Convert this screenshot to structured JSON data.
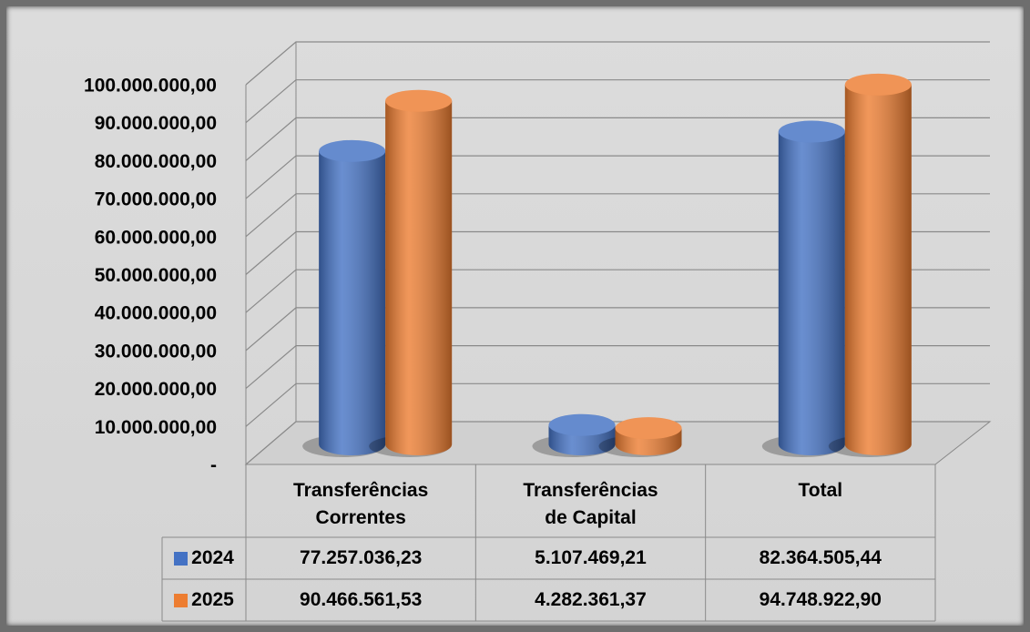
{
  "chart_data": {
    "type": "bar3d",
    "categories": [
      "Transferências Correntes",
      "Transferências de Capital",
      "Total"
    ],
    "series": [
      {
        "name": "2024",
        "color": "#4472c4",
        "values": [
          77257036.23,
          5107469.21,
          82364505.44
        ],
        "value_labels": [
          "77.257.036,23",
          "5.107.469,21",
          "82.364.505,44"
        ]
      },
      {
        "name": "2025",
        "color": "#ed7d31",
        "values": [
          90466561.53,
          4282361.37,
          94748922.9
        ],
        "value_labels": [
          "90.466.561,53",
          "4.282.361,37",
          "94.748.922,90"
        ]
      }
    ],
    "ylim": [
      0,
      100000000
    ],
    "yticks": [
      {
        "value": 0,
        "label": "-"
      },
      {
        "value": 10000000,
        "label": "10.000.000,00"
      },
      {
        "value": 20000000,
        "label": "20.000.000,00"
      },
      {
        "value": 30000000,
        "label": "30.000.000,00"
      },
      {
        "value": 40000000,
        "label": "40.000.000,00"
      },
      {
        "value": 50000000,
        "label": "50.000.000,00"
      },
      {
        "value": 60000000,
        "label": "60.000.000,00"
      },
      {
        "value": 70000000,
        "label": "70.000.000,00"
      },
      {
        "value": 80000000,
        "label": "80.000.000,00"
      },
      {
        "value": 90000000,
        "label": "90.000.000,00"
      },
      {
        "value": 100000000,
        "label": "100.000.000,00"
      }
    ],
    "grid": true
  }
}
